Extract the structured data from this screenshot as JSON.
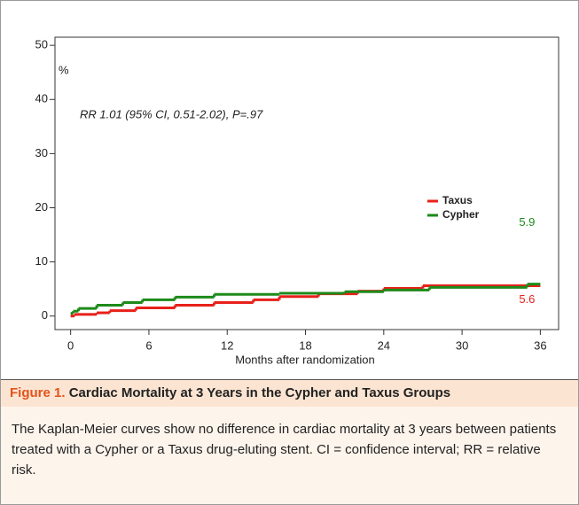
{
  "chart_data": {
    "type": "step",
    "ylabel": "%",
    "xlabel": "Months after randomization",
    "annotation": "RR 1.01 (95% CI, 0.51-2.02), P=.97",
    "xlim": [
      -1.2,
      37.4
    ],
    "xticks": [
      0,
      6,
      12,
      18,
      24,
      30,
      36
    ],
    "ylim": [
      -2.5,
      51.5
    ],
    "yticks": [
      0,
      10,
      20,
      30,
      40,
      50
    ],
    "series": [
      {
        "name": "Taxus",
        "color": "#e8201a",
        "end_label": 5.6,
        "x": [
          0,
          0.3,
          2,
          3,
          5,
          8,
          11,
          14,
          16,
          19,
          22,
          24,
          27,
          36
        ],
        "values": [
          0,
          0.3,
          0.6,
          1,
          1.5,
          2,
          2.5,
          3,
          3.6,
          4.1,
          4.6,
          5.1,
          5.6,
          5.6
        ]
      },
      {
        "name": "Cypher",
        "color": "#1d8a1a",
        "end_label": 5.9,
        "x": [
          0,
          0.2,
          0.6,
          2,
          4,
          5.5,
          8,
          11,
          16,
          21,
          24,
          27.5,
          35,
          36
        ],
        "values": [
          0.5,
          0.9,
          1.4,
          2,
          2.5,
          3,
          3.5,
          4,
          4.2,
          4.5,
          4.8,
          5.3,
          5.9,
          5.9
        ]
      }
    ]
  },
  "caption": {
    "label": "Figure 1.",
    "title": "Cardiac Mortality at 3 Years in the Cypher and Taxus Groups",
    "text": "The Kaplan-Meier curves show no difference in cardiac mortality at 3 years between patients treated with a Cypher or a Taxus drug-eluting stent. CI = confidence interval; RR = relative risk."
  }
}
